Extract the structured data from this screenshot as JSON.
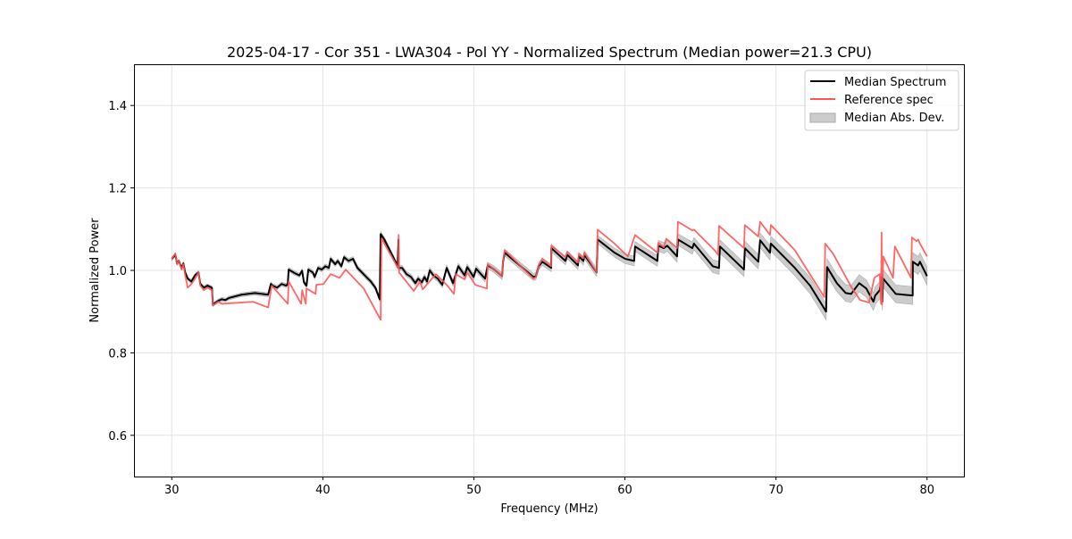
{
  "chart_data": {
    "type": "line",
    "title": "2025-04-17 - Cor 351 - LWA304 - Pol YY - Normalized Spectrum (Median power=21.3 CPU)",
    "xlabel": "Frequency (MHz)",
    "ylabel": "Normalized Power",
    "xlim": [
      27.5,
      82.5
    ],
    "ylim": [
      0.5,
      1.5
    ],
    "xticks": [
      30,
      40,
      50,
      60,
      70,
      80
    ],
    "yticks": [
      0.6,
      0.8,
      1.0,
      1.2,
      1.4
    ],
    "xtick_labels": [
      "30",
      "40",
      "50",
      "60",
      "70",
      "80"
    ],
    "ytick_labels": [
      "0.6",
      "0.8",
      "1.0",
      "1.2",
      "1.4"
    ],
    "grid": true,
    "legend_position": "top-right",
    "legend": [
      "Median Spectrum",
      "Reference spec",
      "Median Abs. Dev."
    ],
    "colors": {
      "median": "#000000",
      "reference": "#ff5555",
      "mad": "#bbbbbb"
    },
    "series": [
      {
        "name": "Median Spectrum",
        "points": [
          [
            30,
            1.028
          ],
          [
            30.24,
            1.038
          ],
          [
            30.35,
            1.017
          ],
          [
            30.47,
            1.023
          ],
          [
            30.65,
            1.006
          ],
          [
            30.77,
            1.017
          ],
          [
            30.89,
            0.995
          ],
          [
            31.06,
            0.98
          ],
          [
            31.3,
            0.973
          ],
          [
            31.54,
            0.988
          ],
          [
            31.77,
            0.995
          ],
          [
            31.89,
            0.967
          ],
          [
            32.13,
            0.958
          ],
          [
            32.36,
            0.963
          ],
          [
            32.66,
            0.958
          ],
          [
            32.72,
            0.917
          ],
          [
            33.07,
            0.926
          ],
          [
            33.31,
            0.93
          ],
          [
            33.55,
            0.928
          ],
          [
            33.78,
            0.933
          ],
          [
            34.61,
            0.941
          ],
          [
            35.5,
            0.945
          ],
          [
            36.38,
            0.941
          ],
          [
            36.56,
            0.967
          ],
          [
            36.68,
            0.963
          ],
          [
            36.97,
            0.958
          ],
          [
            37.27,
            0.967
          ],
          [
            37.57,
            0.963
          ],
          [
            37.68,
            0.967
          ],
          [
            37.74,
            1.002
          ],
          [
            38.16,
            0.993
          ],
          [
            38.45,
            0.988
          ],
          [
            38.63,
            0.999
          ],
          [
            38.75,
            0.971
          ],
          [
            38.92,
            0.963
          ],
          [
            39.04,
            1.002
          ],
          [
            39.34,
            0.995
          ],
          [
            39.46,
            0.984
          ],
          [
            39.69,
            1.006
          ],
          [
            39.93,
            1.002
          ],
          [
            40.17,
            1.01
          ],
          [
            40.4,
            1.006
          ],
          [
            40.52,
            1.028
          ],
          [
            40.82,
            1.015
          ],
          [
            40.99,
            1.023
          ],
          [
            41.23,
            1.01
          ],
          [
            41.41,
            1.032
          ],
          [
            41.7,
            1.023
          ],
          [
            42.0,
            1.028
          ],
          [
            42.29,
            1.006
          ],
          [
            42.59,
            0.995
          ],
          [
            42.88,
            0.984
          ],
          [
            43.18,
            0.973
          ],
          [
            43.48,
            0.958
          ],
          [
            43.77,
            0.93
          ],
          [
            43.83,
            1.088
          ],
          [
            44.07,
            1.075
          ],
          [
            44.36,
            1.054
          ],
          [
            44.66,
            1.032
          ],
          [
            44.95,
            1.01
          ],
          [
            45.01,
            1.075
          ],
          [
            45.02,
            1.006
          ],
          [
            45.25,
            1.006
          ],
          [
            45.54,
            0.991
          ],
          [
            45.84,
            0.984
          ],
          [
            46.13,
            0.969
          ],
          [
            46.31,
            0.98
          ],
          [
            46.55,
            0.971
          ],
          [
            46.73,
            0.984
          ],
          [
            46.9,
            0.973
          ],
          [
            47.08,
            1.0
          ],
          [
            47.32,
            0.988
          ],
          [
            47.61,
            0.98
          ],
          [
            47.91,
            0.965
          ],
          [
            48.2,
            1.006
          ],
          [
            48.62,
            0.969
          ],
          [
            48.97,
            1.01
          ],
          [
            49.39,
            0.988
          ],
          [
            49.56,
            1.008
          ],
          [
            49.98,
            0.984
          ],
          [
            50.15,
            1.004
          ],
          [
            50.74,
            0.98
          ],
          [
            50.92,
            1.012
          ],
          [
            51.28,
            1.004
          ],
          [
            51.87,
            0.986
          ],
          [
            51.93,
            1.021
          ],
          [
            52.04,
            1.043
          ],
          [
            53.94,
            0.984
          ],
          [
            54.11,
            0.986
          ],
          [
            54.29,
            1.01
          ],
          [
            54.53,
            1.021
          ],
          [
            55.12,
            1.006
          ],
          [
            55.13,
            1.054
          ],
          [
            56.06,
            1.023
          ],
          [
            56.18,
            1.038
          ],
          [
            56.89,
            1.012
          ],
          [
            56.95,
            1.034
          ],
          [
            57.25,
            1.023
          ],
          [
            57.31,
            1.038
          ],
          [
            58.13,
            0.995
          ],
          [
            58.19,
            1.075
          ],
          [
            59.31,
            1.043
          ],
          [
            60.02,
            1.028
          ],
          [
            60.61,
            1.023
          ],
          [
            60.67,
            1.058
          ],
          [
            62.15,
            1.023
          ],
          [
            62.21,
            1.06
          ],
          [
            62.57,
            1.054
          ],
          [
            62.8,
            1.06
          ],
          [
            63.45,
            1.034
          ],
          [
            63.51,
            1.075
          ],
          [
            64.46,
            1.054
          ],
          [
            64.57,
            1.065
          ],
          [
            65.82,
            1.01
          ],
          [
            66.23,
            1.006
          ],
          [
            66.29,
            1.058
          ],
          [
            67.88,
            1.002
          ],
          [
            67.94,
            1.054
          ],
          [
            68.83,
            1.021
          ],
          [
            68.95,
            1.073
          ],
          [
            69.6,
            1.043
          ],
          [
            69.66,
            1.065
          ],
          [
            71.25,
            1.006
          ],
          [
            72.26,
            0.963
          ],
          [
            73.32,
            0.9
          ],
          [
            73.38,
            1.008
          ],
          [
            74.03,
            0.969
          ],
          [
            74.62,
            0.945
          ],
          [
            74.98,
            0.943
          ],
          [
            75.51,
            0.969
          ],
          [
            75.98,
            0.956
          ],
          [
            76.45,
            0.924
          ],
          [
            76.57,
            0.939
          ],
          [
            76.87,
            0.952
          ],
          [
            76.99,
            0.984
          ],
          [
            77.04,
            0.924
          ],
          [
            77.1,
            0.98
          ],
          [
            77.93,
            0.943
          ],
          [
            79.05,
            0.939
          ],
          [
            79.06,
            1.021
          ],
          [
            79.41,
            1.012
          ],
          [
            79.53,
            1.021
          ],
          [
            80,
            0.986
          ]
        ]
      },
      {
        "name": "Reference spec",
        "points": [
          [
            30,
            1.028
          ],
          [
            30.24,
            1.041
          ],
          [
            30.35,
            1.015
          ],
          [
            30.47,
            1.023
          ],
          [
            30.65,
            1.002
          ],
          [
            30.77,
            1.015
          ],
          [
            30.89,
            0.988
          ],
          [
            31.06,
            0.958
          ],
          [
            31.3,
            0.967
          ],
          [
            31.54,
            0.98
          ],
          [
            31.77,
            0.995
          ],
          [
            31.89,
            0.963
          ],
          [
            32.13,
            0.952
          ],
          [
            32.36,
            0.958
          ],
          [
            32.66,
            0.952
          ],
          [
            32.72,
            0.915
          ],
          [
            33.07,
            0.924
          ],
          [
            33.31,
            0.919
          ],
          [
            35.38,
            0.924
          ],
          [
            36.38,
            0.91
          ],
          [
            36.62,
            0.963
          ],
          [
            37.68,
            0.919
          ],
          [
            37.74,
            0.973
          ],
          [
            38.57,
            0.919
          ],
          [
            38.63,
            0.952
          ],
          [
            38.87,
            0.919
          ],
          [
            38.92,
            0.956
          ],
          [
            39.52,
            0.943
          ],
          [
            39.57,
            0.965
          ],
          [
            40.05,
            0.967
          ],
          [
            40.52,
            0.991
          ],
          [
            41.11,
            0.982
          ],
          [
            41.52,
            1.002
          ],
          [
            42.71,
            0.956
          ],
          [
            43.83,
            0.88
          ],
          [
            43.89,
            1.077
          ],
          [
            45.01,
            1.004
          ],
          [
            45.02,
            1.086
          ],
          [
            45.05,
            0.995
          ],
          [
            46.02,
            0.95
          ],
          [
            46.43,
            0.973
          ],
          [
            46.61,
            0.954
          ],
          [
            47.49,
            0.991
          ],
          [
            48.2,
            0.965
          ],
          [
            48.68,
            0.943
          ],
          [
            48.8,
            0.991
          ],
          [
            49.39,
            0.978
          ],
          [
            49.56,
            0.995
          ],
          [
            50.09,
            0.965
          ],
          [
            50.86,
            0.956
          ],
          [
            50.92,
            1.015
          ],
          [
            51.28,
            1.004
          ],
          [
            51.87,
            0.986
          ],
          [
            51.93,
            1.023
          ],
          [
            52.04,
            1.049
          ],
          [
            53.94,
            0.98
          ],
          [
            54.11,
            0.984
          ],
          [
            54.29,
            1.012
          ],
          [
            54.53,
            1.028
          ],
          [
            55.12,
            1.01
          ],
          [
            55.13,
            1.06
          ],
          [
            56.06,
            1.032
          ],
          [
            56.18,
            1.045
          ],
          [
            56.89,
            1.019
          ],
          [
            56.95,
            1.04
          ],
          [
            57.25,
            1.03
          ],
          [
            57.31,
            1.043
          ],
          [
            58.13,
            0.995
          ],
          [
            58.19,
            1.099
          ],
          [
            59.31,
            1.065
          ],
          [
            60.2,
            1.034
          ],
          [
            60.67,
            1.086
          ],
          [
            62.15,
            1.043
          ],
          [
            62.21,
            1.067
          ],
          [
            62.57,
            1.056
          ],
          [
            62.74,
            1.077
          ],
          [
            63.45,
            1.054
          ],
          [
            63.51,
            1.118
          ],
          [
            64.46,
            1.097
          ],
          [
            64.57,
            1.099
          ],
          [
            65.93,
            1.049
          ],
          [
            66.17,
            1.038
          ],
          [
            66.23,
            1.108
          ],
          [
            67.88,
            1.054
          ],
          [
            67.94,
            1.11
          ],
          [
            68.83,
            1.082
          ],
          [
            68.95,
            1.118
          ],
          [
            69.6,
            1.086
          ],
          [
            69.66,
            1.11
          ],
          [
            71.25,
            1.049
          ],
          [
            73.2,
            0.935
          ],
          [
            73.26,
            1.065
          ],
          [
            73.79,
            1.04
          ],
          [
            74.98,
            0.96
          ],
          [
            75.57,
            0.928
          ],
          [
            76.16,
            0.922
          ],
          [
            76.51,
            0.982
          ],
          [
            76.87,
            0.991
          ],
          [
            76.95,
            0.919
          ],
          [
            76.99,
            1.092
          ],
          [
            77.02,
            0.917
          ],
          [
            77.1,
            1.034
          ],
          [
            77.75,
            0.982
          ],
          [
            77.87,
            1.058
          ],
          [
            78.94,
            0.982
          ],
          [
            79.0,
            1.08
          ],
          [
            79.3,
            1.071
          ],
          [
            79.41,
            1.075
          ],
          [
            79.53,
            1.065
          ],
          [
            80,
            1.034
          ]
        ]
      }
    ],
    "mad_halfwidth": [
      [
        30,
        0.004
      ],
      [
        45,
        0.006
      ],
      [
        58,
        0.01
      ],
      [
        65,
        0.015
      ],
      [
        73,
        0.02
      ],
      [
        80,
        0.022
      ]
    ]
  }
}
